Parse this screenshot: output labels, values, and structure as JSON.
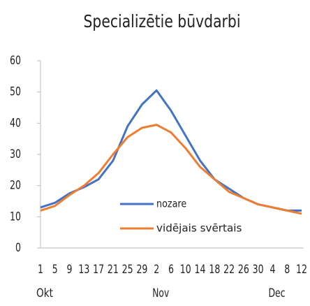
{
  "chart_data": {
    "type": "line",
    "title": "Specializētie būvdarbi",
    "categories": [
      "1",
      "5",
      "9",
      "13",
      "17",
      "21",
      "25",
      "29",
      "2",
      "6",
      "10",
      "14",
      "18",
      "22",
      "26",
      "30",
      "4",
      "8",
      "12"
    ],
    "month_labels": [
      "Okt",
      "Nov",
      "Dec"
    ],
    "series": [
      {
        "name": "nozare",
        "color": "#4472c4",
        "values": [
          13,
          14.5,
          17.5,
          19.5,
          22,
          28,
          39,
          46,
          50.5,
          44,
          36,
          28,
          22,
          19,
          16,
          14,
          13,
          12,
          12
        ]
      },
      {
        "name": "vidējais svērtais",
        "color": "#ed7d31",
        "values": [
          12,
          13.5,
          17,
          20,
          24,
          30,
          35.5,
          38.5,
          39.5,
          37,
          32,
          26,
          22,
          18,
          16,
          14,
          13,
          12,
          11
        ]
      }
    ],
    "ylim": [
      0,
      60
    ],
    "yticks": [
      0,
      10,
      20,
      30,
      40,
      50,
      60
    ],
    "legend": "center"
  }
}
